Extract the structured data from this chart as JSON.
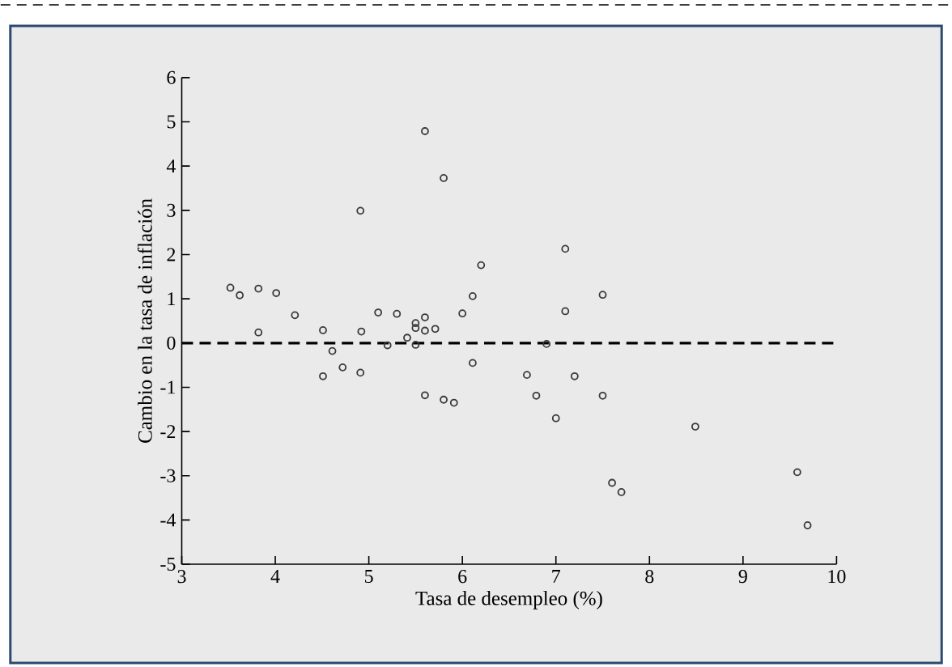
{
  "chart_data": {
    "type": "scatter",
    "xlabel": "Tasa de desempleo (%)",
    "ylabel": "Cambio en la tasa de inflación",
    "x": [
      3.52,
      3.62,
      3.82,
      3.82,
      4.01,
      4.21,
      4.51,
      4.51,
      4.61,
      4.72,
      4.91,
      4.92,
      4.91,
      5.1,
      5.2,
      5.3,
      5.41,
      5.5,
      5.5,
      5.5,
      5.6,
      5.6,
      5.6,
      5.71,
      5.6,
      5.8,
      5.8,
      5.91,
      6.0,
      6.11,
      6.11,
      6.2,
      7.1,
      7.1,
      6.9,
      6.69,
      7.2,
      6.79,
      7.5,
      7.5,
      7.0,
      8.49,
      7.6,
      7.7,
      9.58,
      9.69
    ],
    "values": [
      1.25,
      1.08,
      1.23,
      0.24,
      1.13,
      0.63,
      0.29,
      -0.75,
      -0.18,
      -0.55,
      2.99,
      0.26,
      -0.67,
      0.69,
      -0.05,
      0.66,
      0.12,
      0.45,
      0.34,
      -0.04,
      4.79,
      0.58,
      0.28,
      0.32,
      -1.18,
      3.73,
      -1.28,
      -1.35,
      0.67,
      1.06,
      -0.45,
      1.76,
      2.13,
      0.72,
      -0.02,
      -0.72,
      -0.75,
      -1.19,
      1.09,
      -1.19,
      -1.7,
      -1.89,
      -3.16,
      -3.37,
      -2.92,
      -4.12
    ],
    "color": "#3a3a3a",
    "marker": "circle",
    "xlim": [
      3,
      10
    ],
    "ylim": [
      -5,
      6
    ],
    "xticks": [
      3,
      4,
      5,
      6,
      7,
      8,
      9,
      10
    ],
    "yticks": [
      -5,
      -4,
      -3,
      -2,
      -1,
      0,
      1,
      2,
      3,
      4,
      5,
      6
    ],
    "ref_lines": [
      {
        "axis": "y",
        "value": 0,
        "color": "#000000",
        "line_style": "dashed"
      }
    ]
  }
}
